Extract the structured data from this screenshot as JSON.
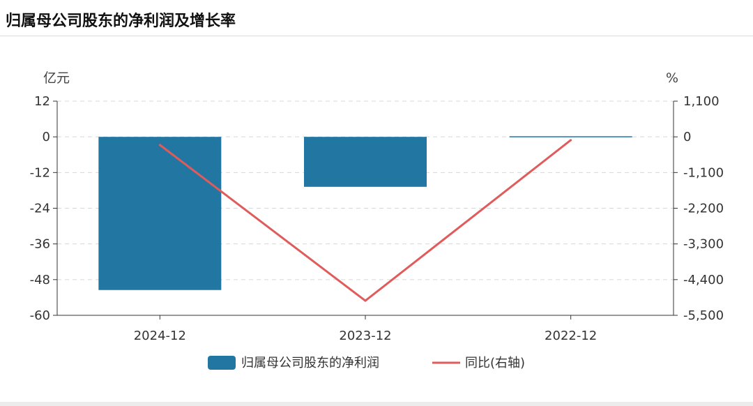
{
  "header": {
    "title": "归属母公司股东的净利润及增长率"
  },
  "colors": {
    "bar": "#2277a2",
    "line": "#e05b5b",
    "grid": "#d8d8d8",
    "axis": "#333333"
  },
  "chart_data": {
    "type": "bar",
    "categories": [
      "2024-12",
      "2023-12",
      "2022-12"
    ],
    "series": [
      {
        "name": "归属母公司股东的净利润",
        "type": "bar",
        "axis": "left",
        "values": [
          -51.5,
          -16.8,
          0.2
        ]
      },
      {
        "name": "同比(右轴)",
        "type": "line",
        "axis": "right",
        "values": [
          -250,
          -5050,
          -100
        ]
      }
    ],
    "y_left": {
      "unit": "亿元",
      "ylim": [
        -60,
        12
      ],
      "ticks": [
        12,
        0,
        -12,
        -24,
        -36,
        -48,
        -60
      ],
      "tick_labels": [
        "12",
        "0",
        "-12",
        "-24",
        "-36",
        "-48",
        "-60"
      ]
    },
    "y_right": {
      "unit": "%",
      "ylim": [
        -5500,
        1100
      ],
      "ticks": [
        1100,
        0,
        -1100,
        -2200,
        -3300,
        -4400,
        -5500
      ],
      "tick_labels": [
        "1,100",
        "0",
        "-1,100",
        "-2,200",
        "-3,300",
        "-4,400",
        "-5,500"
      ]
    },
    "grid": true,
    "legend_position": "bottom-center"
  }
}
